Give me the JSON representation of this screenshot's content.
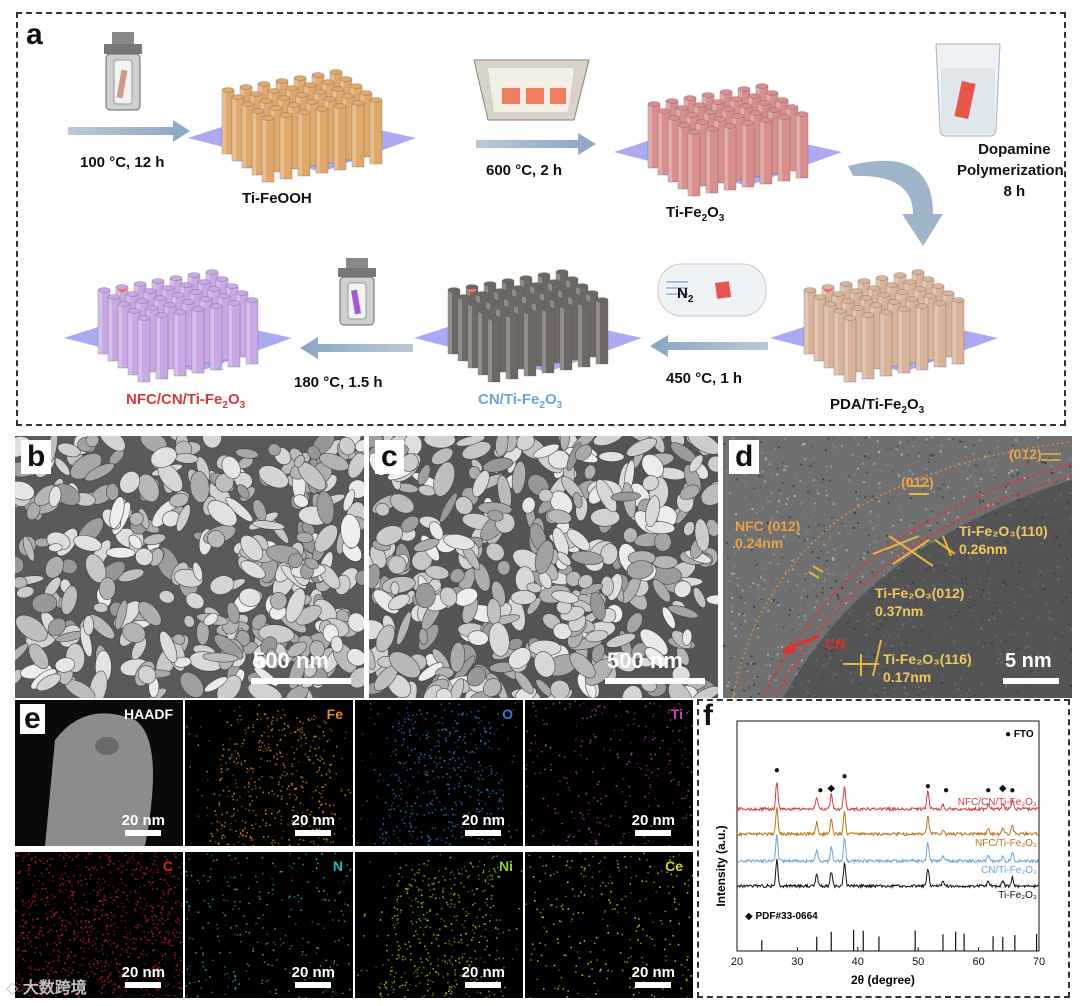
{
  "panel_a": {
    "label": "a",
    "cond1": "100 °C, 12 h",
    "cond2": "600 °C, 2 h",
    "cond3_line1": "Dopamine",
    "cond3_line2": "Polymerization",
    "cond3_line3": "8 h",
    "cond4": "450 °C, 1 h",
    "cond5": "180 °C, 1.5 h",
    "n2": "N",
    "n2_sub": "2",
    "s1": "Ti-FeOOH",
    "s2_pre": "Ti-Fe",
    "s2_sub1": "2",
    "s2_mid": "O",
    "s2_sub2": "3",
    "s3_pre": "PDA/Ti-Fe",
    "s4_pre": "CN/Ti-Fe",
    "s5_pre": "NFC/CN/Ti-Fe",
    "colors": {
      "tifeooh": "#e0a86a",
      "tife2o3": "#d98e8e",
      "pda": "#d9b39a",
      "cn": "#6e6763",
      "nfc": "#c9a8e6",
      "substrate": "#9b9af0",
      "cn_text": "#6ba3d6",
      "nfc_text": "#d23b3b"
    }
  },
  "panel_b": {
    "label": "b",
    "scale": "500 nm"
  },
  "panel_c": {
    "label": "c",
    "scale": "500 nm"
  },
  "panel_d": {
    "label": "d",
    "scale": "5 nm",
    "ann_012_top": "(012)",
    "ann_012_mid": "(012)",
    "ann_nfc1": "NFC (012)",
    "ann_nfc2": "0.24nm",
    "ann_110a": "Ti-Fe₂O₃(110)",
    "ann_110b": "0.26nm",
    "ann_012a": "Ti-Fe₂O₃(012)",
    "ann_012b": "0.37nm",
    "ann_cn": "CN",
    "ann_116a": "Ti-Fe₂O₃(116)",
    "ann_116b": "0.17nm"
  },
  "panel_e": {
    "label": "e",
    "maps": [
      {
        "name": "HAADF",
        "color": "#ffffff",
        "scale": "20 nm"
      },
      {
        "name": "Fe",
        "color": "#e48a2a",
        "scale": "20 nm"
      },
      {
        "name": "O",
        "color": "#2f7fd6",
        "scale": "20 nm"
      },
      {
        "name": "Ti",
        "color": "#c246c2",
        "scale": "20 nm"
      },
      {
        "name": "C",
        "color": "#d42020",
        "scale": "20 nm"
      },
      {
        "name": "N",
        "color": "#2fb8c4",
        "scale": "20 nm"
      },
      {
        "name": "Ni",
        "color": "#8fd02a",
        "scale": "20 nm"
      },
      {
        "name": "Ce",
        "color": "#d4d42a",
        "scale": "20 nm"
      }
    ]
  },
  "panel_f": {
    "label": "f",
    "xlabel": "2θ (degree)",
    "ylabel": "Intensity (a.u.)",
    "legend_fto": "FTO",
    "legend_pdf": "PDF#33-0664"
  },
  "chart_data": {
    "type": "line",
    "xlim": [
      20,
      70
    ],
    "xticks": [
      20,
      30,
      40,
      50,
      60,
      70
    ],
    "series": [
      {
        "name": "NFC/CN/Ti-Fe₂O₃",
        "color": "#d43c3c"
      },
      {
        "name": "NFC/Ti-Fe₂O₃",
        "color": "#b8741e"
      },
      {
        "name": "CN/Ti-Fe₂O₃",
        "color": "#6ba3d6"
      },
      {
        "name": "Ti-Fe₂O₃",
        "color": "#111111"
      }
    ],
    "peaks": [
      26.6,
      33.2,
      35.6,
      37.8,
      51.6,
      54.1,
      61.6,
      64.0,
      65.6
    ],
    "peak_heights": [
      1.0,
      0.45,
      0.55,
      0.85,
      0.7,
      0.15,
      0.2,
      0.2,
      0.35
    ],
    "fto_markers": [
      26.6,
      33.8,
      37.8,
      51.6,
      54.6,
      61.6,
      65.6
    ],
    "pdf_markers": [
      35.6,
      64.0
    ],
    "reference_lines": [
      24.1,
      33.2,
      35.6,
      39.3,
      40.9,
      43.5,
      49.5,
      54.1,
      56.2,
      57.6,
      62.4,
      64.0,
      66.0,
      69.6
    ]
  }
}
